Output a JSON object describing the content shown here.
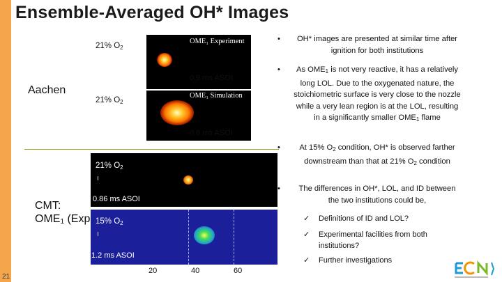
{
  "slide": {
    "title": "Ensemble-Averaged OH* Images",
    "page_number": "21",
    "accent_color": "#f5a64a",
    "divider_color": "#8cac2f"
  },
  "left_labels": {
    "aachen": "Aachen",
    "cmt_line1": "CMT:",
    "cmt_line2_prefix": "OME",
    "cmt_line2_sub": "1",
    "cmt_line2_suffix": " (Exp.)"
  },
  "panels": {
    "aachen_exp": {
      "condition_prefix": "21% O",
      "condition_sub": "2",
      "tag": "OME₁ Experiment",
      "asoi": "0.9 ms ASOI"
    },
    "aachen_sim": {
      "condition_prefix": "21% O",
      "condition_sub": "2",
      "tag": "OME₁ Simulation",
      "asoi": "0.8 ms ASOI"
    },
    "cmt_21": {
      "condition_prefix": "21% O",
      "condition_sub": "2",
      "asoi": "0.86 ms ASOI"
    },
    "cmt_15": {
      "condition_prefix": "15% O",
      "condition_sub": "2",
      "asoi": "1.2 ms ASOI"
    }
  },
  "axis_ticks": [
    "20",
    "40",
    "60"
  ],
  "bullets": [
    {
      "text": "OH* images are presented at similar time after ignition for both institutions"
    },
    {
      "text_a": "As OME",
      "sub_a": "1",
      "text_b": " is not very reactive, it has a relatively long LOL. Due to the oxygenated nature, the stoichiometric surface is very close to the nozzle while a very lean region is at the LOL, resulting in a significantly smaller OME",
      "sub_b": "1",
      "text_c": " flame"
    },
    {
      "text_a": "At 15% O",
      "sub_a": "2",
      "text_b": " condition, OH* is observed farther downstream than that at 21% O",
      "sub_b": "2",
      "text_c": " condition"
    },
    {
      "text": "The differences in OH*, LOL, and ID between the two institutions could be,"
    }
  ],
  "checks": [
    {
      "text": "Definitions of ID and LOL?"
    },
    {
      "text": "Experimental facilities from both institutions?"
    },
    {
      "text": "Further investigations"
    }
  ],
  "icons": {
    "bullet": "bullet-dot-icon",
    "check": "checkmark-icon",
    "logo": "ecn-logo"
  }
}
